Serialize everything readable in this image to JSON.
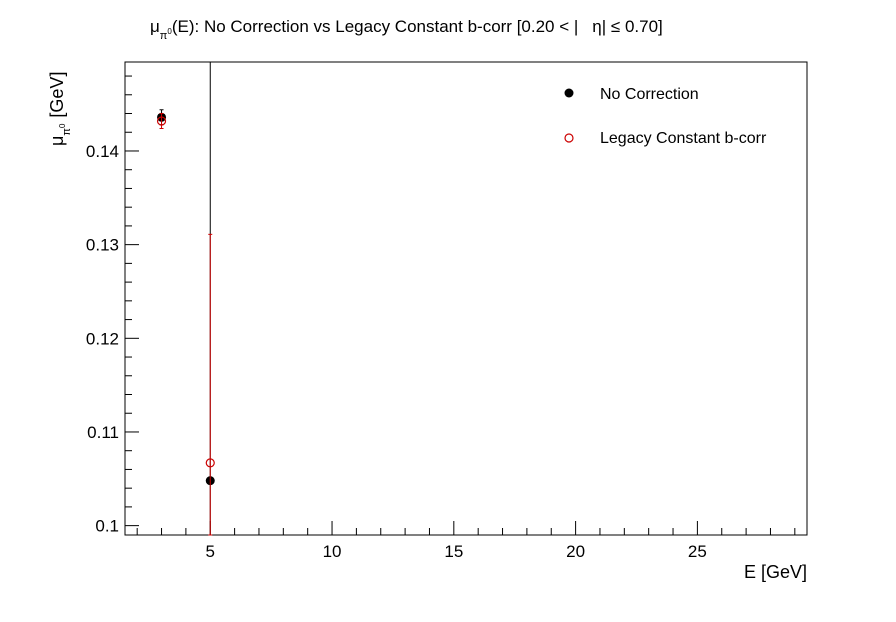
{
  "chart_data": {
    "type": "scatter",
    "title": "μπ⁰(E): No Correction vs Legacy Constant b-corr   [0.20 < |η| ≤ 0.70]",
    "title_parts": {
      "mu": "μ",
      "sub": "π",
      "sup": "0",
      "main": "(E): No Correction vs Legacy Constant b-corr   [0.20 < |",
      "eta": "η| ≤ 0.70]"
    },
    "xlabel": "E [GeV]",
    "ylabel": "μπ⁰ [GeV]",
    "ylabel_parts": {
      "mu": "μ",
      "sub": "π",
      "sup": "0",
      "unit": "[GeV]"
    },
    "xlim": [
      1.5,
      29.5
    ],
    "ylim": [
      0.099,
      0.1495
    ],
    "x_ticks": [
      5,
      10,
      15,
      20,
      25
    ],
    "x_tick_labels": [
      "5",
      "10",
      "15",
      "20",
      "25"
    ],
    "y_ticks": [
      0.1,
      0.11,
      0.12,
      0.13,
      0.14
    ],
    "y_tick_labels": [
      "0.1",
      "0.11",
      "0.12",
      "0.13",
      "0.14"
    ],
    "grid": false,
    "legend_position": "top-right",
    "series": [
      {
        "name": "No Correction",
        "marker": "filled-circle",
        "color": "#000000",
        "points": [
          {
            "x": 3.0,
            "y": 0.1436,
            "yerr_low": 0.0008,
            "yerr_high": 0.0008
          },
          {
            "x": 5.0,
            "y": 0.1048,
            "yerr_low": 0.0058,
            "yerr_high": 0.0452
          }
        ]
      },
      {
        "name": "Legacy Constant b-corr",
        "marker": "open-circle",
        "color": "#cc0000",
        "points": [
          {
            "x": 3.0,
            "y": 0.1432,
            "yerr_low": 0.0008,
            "yerr_high": 0.0008
          },
          {
            "x": 5.0,
            "y": 0.1067,
            "yerr_low": 0.0077,
            "yerr_high": 0.0244
          }
        ]
      }
    ]
  }
}
